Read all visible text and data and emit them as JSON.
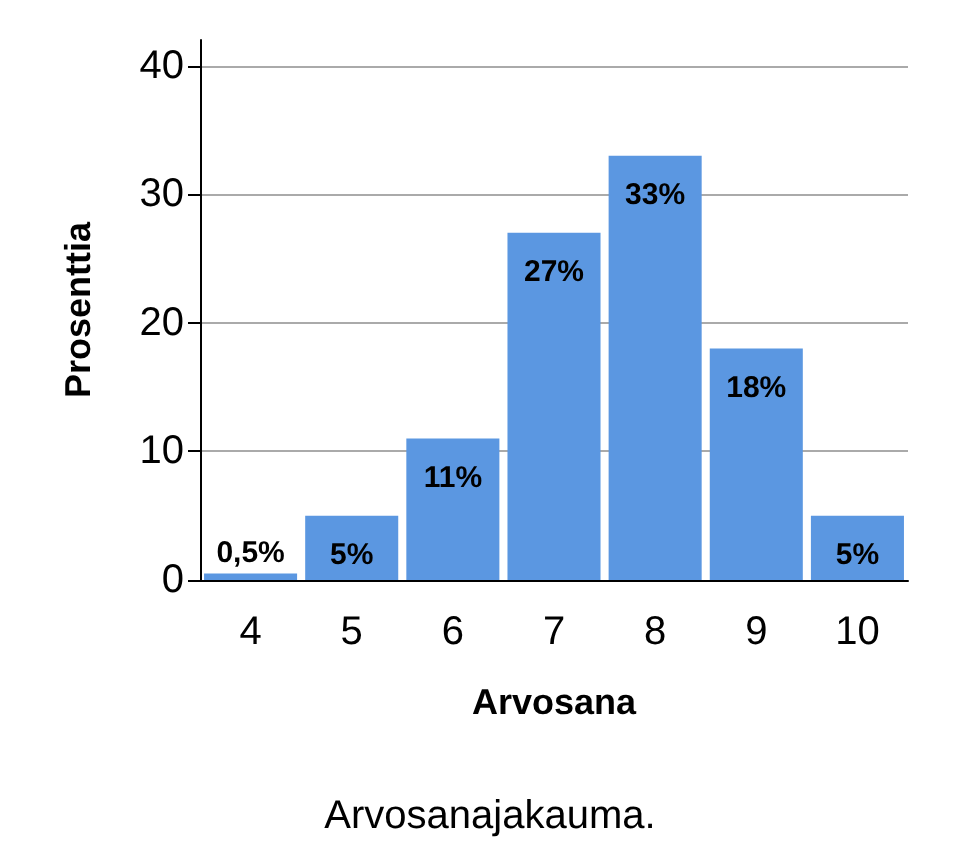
{
  "chart_data": {
    "type": "bar",
    "xlabel": "Arvosana",
    "ylabel": "Prosenttia",
    "annotations": [
      "Arvosanajakauma."
    ],
    "categories": [
      "4",
      "5",
      "6",
      "7",
      "8",
      "9",
      "10"
    ],
    "values": [
      0.5,
      5,
      11,
      27,
      33,
      18,
      5
    ],
    "value_labels": [
      "0,5%",
      "5%",
      "11%",
      "27%",
      "33%",
      "18%",
      "5%"
    ],
    "color": "#5b97e1",
    "ylim": [
      0,
      42
    ],
    "yticks": [
      0,
      10,
      20,
      30,
      40
    ],
    "grid": "y"
  }
}
